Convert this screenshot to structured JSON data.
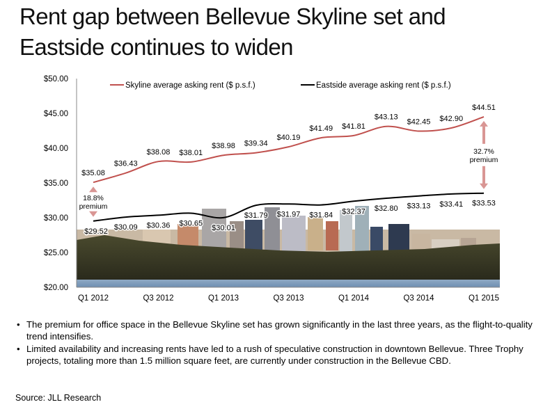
{
  "title": {
    "line1": "Rent gap between Bellevue Skyline set and",
    "line2": "Eastside continues to widen"
  },
  "chart_data": {
    "type": "line",
    "categories": [
      "Q1 2012",
      "Q2 2012",
      "Q3 2012",
      "Q4 2012",
      "Q1 2013",
      "Q2 2013",
      "Q3 2013",
      "Q4 2013",
      "Q1 2014",
      "Q2 2014",
      "Q3 2014",
      "Q4 2014",
      "Q1 2015"
    ],
    "x_tick_labels": [
      "Q1 2012",
      "",
      "Q3 2012",
      "",
      "Q1 2013",
      "",
      "Q3 2013",
      "",
      "Q1 2014",
      "",
      "Q3 2014",
      "",
      "Q1 2015"
    ],
    "series": [
      {
        "name": "Skyline average asking rent ($ p.s.f.)",
        "color": "#c0504d",
        "values": [
          35.08,
          36.43,
          38.08,
          38.01,
          38.98,
          39.34,
          40.19,
          41.49,
          41.81,
          43.13,
          42.45,
          42.9,
          44.51
        ],
        "labels": [
          "$35.08",
          "$36.43",
          "$38.08",
          "$38.01",
          "$38.98",
          "$39.34",
          "$40.19",
          "$41.49",
          "$41.81",
          "$43.13",
          "$42.45",
          "$42.90",
          "$44.51"
        ]
      },
      {
        "name": "Eastside average asking rent ($ p.s.f.)",
        "color": "#000000",
        "values": [
          29.52,
          30.09,
          30.36,
          30.65,
          30.01,
          31.79,
          31.97,
          31.84,
          32.37,
          32.8,
          33.13,
          33.41,
          33.53
        ],
        "labels": [
          "$29.52",
          "$30.09",
          "$30.36",
          "$30.65",
          "$30.01",
          "$31.79",
          "$31.97",
          "$31.84",
          "$32.37",
          "$32.80",
          "$33.13",
          "$33.41",
          "$33.53"
        ]
      }
    ],
    "ylim": [
      20,
      50
    ],
    "y_ticks": [
      20,
      25,
      30,
      35,
      40,
      45,
      50
    ],
    "y_tick_labels": [
      "$20.00",
      "$25.00",
      "$30.00",
      "$35.00",
      "$40.00",
      "$45.00",
      "$50.00"
    ],
    "legend_position": "top",
    "grid": false,
    "annotations": [
      {
        "text": "18.8%\npremium",
        "at": "Q1 2012",
        "from": 29.52,
        "to": 35.08,
        "color": "#d99694"
      },
      {
        "text": "32.7%\npremium",
        "at": "Q1 2015",
        "from": 33.53,
        "to": 44.51,
        "color": "#d99694"
      }
    ],
    "background": "photo of Bellevue skyline"
  },
  "bullets": [
    "The premium for office space in the Bellevue Skyline set has grown significantly in the last three years, as the flight-to-quality trend intensifies.",
    "Limited availability and increasing rents have led to a rush of speculative construction in downtown Bellevue. Three Trophy projects, totaling more than 1.5 million square feet, are currently under construction in the Bellevue CBD."
  ],
  "source": "Source: JLL Research"
}
